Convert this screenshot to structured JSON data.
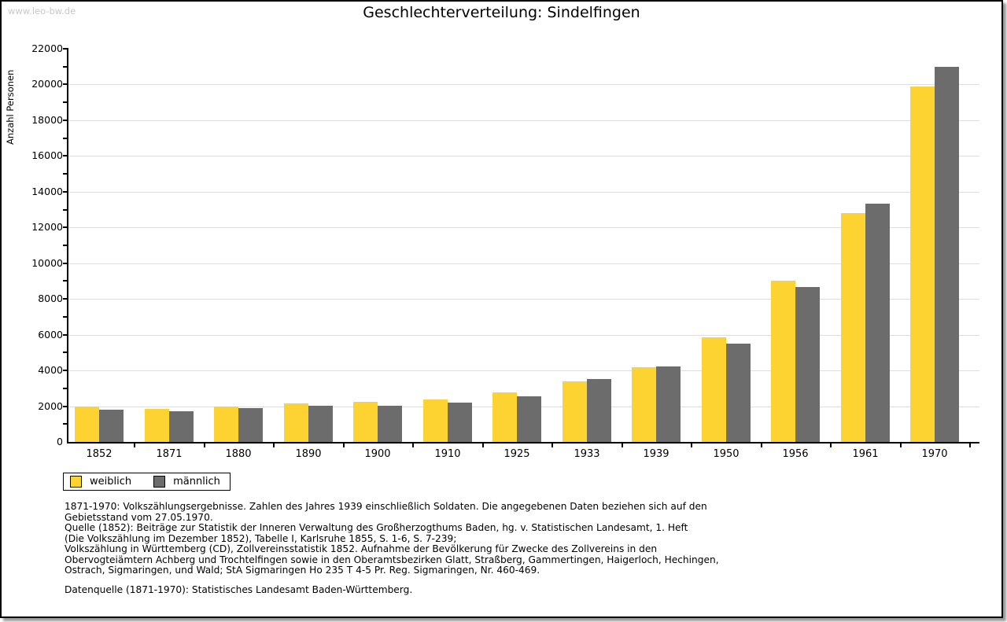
{
  "watermark": "www.leo-bw.de",
  "title": "Geschlechterverteilung: Sindelfingen",
  "chart_data": {
    "type": "bar",
    "title": "Geschlechterverteilung: Sindelfingen",
    "xlabel": "",
    "ylabel": "Anzahl Personen",
    "ylim": [
      0,
      22000
    ],
    "ytick_step": 2000,
    "minor_tick_step": 1000,
    "grid": true,
    "legend_position": "bottom-left",
    "categories": [
      "1852",
      "1871",
      "1880",
      "1890",
      "1900",
      "1910",
      "1925",
      "1933",
      "1939",
      "1950",
      "1956",
      "1961",
      "1970"
    ],
    "series": [
      {
        "name": "weiblich",
        "color": "#fcd330",
        "values": [
          1980,
          1850,
          2000,
          2150,
          2230,
          2380,
          2760,
          3400,
          4200,
          5870,
          9000,
          12800,
          19890
        ]
      },
      {
        "name": "männlich",
        "color": "#6c6c6c",
        "values": [
          1820,
          1720,
          1900,
          2020,
          2040,
          2190,
          2570,
          3530,
          4240,
          5500,
          8650,
          13350,
          20970
        ]
      }
    ]
  },
  "footer": {
    "lines": [
      "1871-1970: Volkszählungsergebnisse. Zahlen des Jahres 1939 einschließlich Soldaten. Die angegebenen Daten beziehen sich auf den",
      "Gebietsstand vom 27.05.1970.",
      "Quelle (1852): Beiträge zur Statistik der Inneren Verwaltung des Großherzogthums Baden, hg. v. Statistischen Landesamt, 1. Heft",
      "(Die Volkszählung im Dezember 1852), Tabelle I, Karlsruhe 1855, S. 1-6, S. 7-239;",
      "Volkszählung in Württemberg (CD), Zollvereinsstatistik 1852. Aufnahme der Bevölkerung für Zwecke des Zollvereins in den",
      "Obervogteiämtern Achberg und Trochtelfingen sowie in den Oberamtsbezirken Glatt, Straßberg, Gammertingen, Haigerloch, Hechingen,",
      "Ostrach, Sigmaringen, und Wald; StA Sigmaringen Ho 235 T 4-5 Pr. Reg. Sigmaringen, Nr. 460-469."
    ],
    "datasource_line": "Datenquelle (1871-1970): Statistisches Landesamt Baden-Württemberg."
  },
  "colors": {
    "bar_weiblich": "#fcd330",
    "bar_maennlich": "#6c6c6c",
    "gridline": "#dedede",
    "axis": "#000000",
    "watermark": "#c9c9c9",
    "shadow": "#9a9a9a"
  }
}
